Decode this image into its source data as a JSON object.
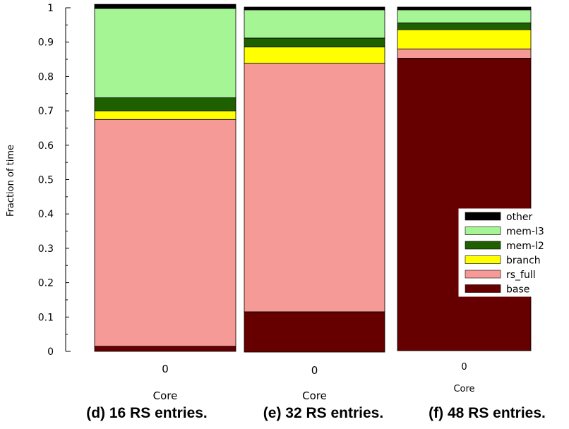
{
  "chart_data": {
    "type": "bar",
    "stacked": true,
    "ylabel": "Fraction of time",
    "ylim": [
      0,
      1
    ],
    "yticks": [
      "0",
      "0.1",
      "0.2",
      "0.3",
      "0.4",
      "0.5",
      "0.6",
      "0.7",
      "0.8",
      "0.9",
      "1"
    ],
    "legend": {
      "placement": "right",
      "order": [
        "other",
        "mem-l3",
        "mem-l2",
        "branch",
        "rs_full",
        "base"
      ]
    },
    "colors": {
      "base": "#660000",
      "rs_full": "#f59a96",
      "branch": "#ffff00",
      "mem-l2": "#1e5f00",
      "mem-l3": "#a6f595",
      "other": "#000000"
    },
    "panels": [
      {
        "caption": "(d) 16 RS entries.",
        "xlabel": "Core",
        "categories": [
          "0"
        ],
        "series": [
          {
            "name": "base",
            "values": [
              0.015
            ]
          },
          {
            "name": "rs_full",
            "values": [
              0.66
            ]
          },
          {
            "name": "branch",
            "values": [
              0.025
            ]
          },
          {
            "name": "mem-l2",
            "values": [
              0.038
            ]
          },
          {
            "name": "mem-l3",
            "values": [
              0.26
            ]
          },
          {
            "name": "other",
            "values": [
              0.012
            ]
          }
        ]
      },
      {
        "caption": "(e) 32 RS entries.",
        "xlabel": "Core",
        "categories": [
          "0"
        ],
        "series": [
          {
            "name": "base",
            "values": [
              0.117
            ]
          },
          {
            "name": "rs_full",
            "values": [
              0.722
            ]
          },
          {
            "name": "branch",
            "values": [
              0.047
            ]
          },
          {
            "name": "mem-l2",
            "values": [
              0.026
            ]
          },
          {
            "name": "mem-l3",
            "values": [
              0.082
            ]
          },
          {
            "name": "other",
            "values": [
              0.008
            ]
          }
        ]
      },
      {
        "caption": "(f) 48 RS entries.",
        "xlabel": "Core",
        "categories": [
          "0"
        ],
        "series": [
          {
            "name": "base",
            "values": [
              0.853
            ]
          },
          {
            "name": "rs_full",
            "values": [
              0.027
            ]
          },
          {
            "name": "branch",
            "values": [
              0.056
            ]
          },
          {
            "name": "mem-l2",
            "values": [
              0.02
            ]
          },
          {
            "name": "mem-l3",
            "values": [
              0.038
            ]
          },
          {
            "name": "other",
            "values": [
              0.008
            ]
          }
        ]
      }
    ]
  }
}
